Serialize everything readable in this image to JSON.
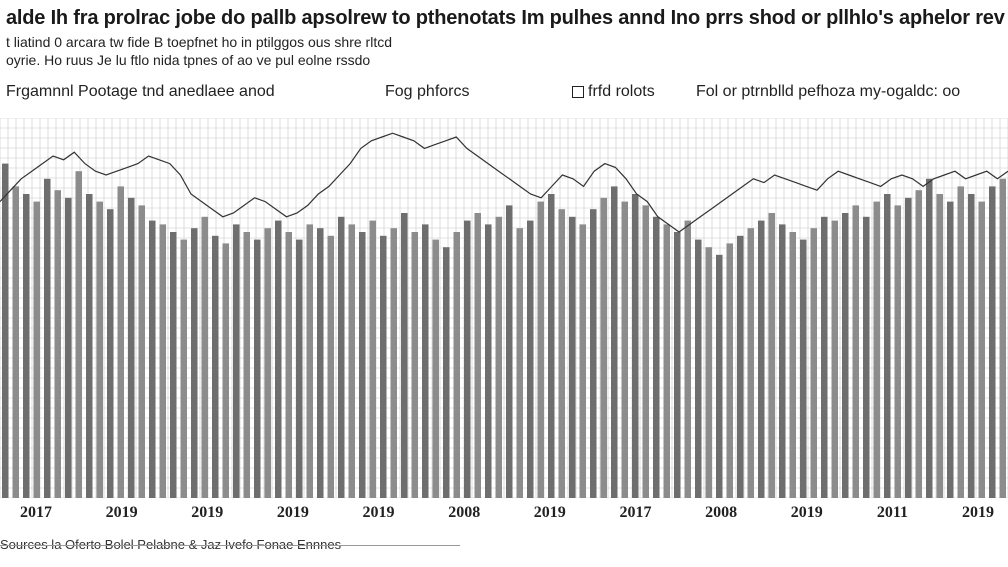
{
  "header": {
    "title": "alde Ih fra prolrac jobe do pallb apsolrew to pthenotats Im pulhes annd Ino prrs shod or pllhlo's aphelor rev",
    "subtitle_1": "t liatind 0 arcara tw fide B toepfnet ho in ptilggos ous shre rltcd",
    "subtitle_2": "oyrie. Ho ruus Je lu ftlo nida tpnes of ao ve pul eolne rssdo"
  },
  "legend": {
    "item_1": "Frgamnnl Pootage tnd anedlaee anod",
    "item_2": "Fog phforcs",
    "item_3": "frfd rolots",
    "item_4": "Fol  or ptrnblld pefhoza my-ogaldc: oo"
  },
  "footer": {
    "source": "Sources la Oferto Bolel Pelabne & Jaz Ivefo Fonae Ennnes"
  },
  "colors": {
    "background": "#ffffff",
    "bar": "#6e6e6e",
    "bar_alt": "#8c8c8c",
    "grid": "#c8c8c8",
    "envelope": "#333333",
    "text": "#1a1a1a"
  },
  "chart_data": {
    "type": "bar",
    "title": "alde Ih fra prolrac jobe do pallb apsolrew to pthenotats Im pulhes annd Ino prrs shod or pllhlo's aphelor rev",
    "xlabel": "",
    "ylabel": "",
    "ylim": [
      0,
      100
    ],
    "grid": true,
    "legend_position": "top",
    "x_tick_labels": [
      "2017",
      "2019",
      "2019",
      "2019",
      "2019",
      "2008",
      "2019",
      "2017",
      "2008",
      "2019",
      "2011",
      "2019"
    ],
    "series": [
      {
        "name": "Frgamnnl Pootage tnd anedlaee anod",
        "values": [
          88,
          82,
          80,
          78,
          84,
          81,
          79,
          86,
          80,
          78,
          76,
          82,
          79,
          77,
          73,
          72,
          70,
          68,
          71,
          74,
          69,
          67,
          72,
          70,
          68,
          71,
          73,
          70,
          68,
          72,
          71,
          69,
          74,
          72,
          70,
          73,
          69,
          71,
          75,
          70,
          72,
          68,
          66,
          70,
          73,
          75,
          72,
          74,
          77,
          71,
          73,
          78,
          80,
          76,
          74,
          72,
          76,
          79,
          82,
          78,
          80,
          77,
          74,
          72,
          70,
          73,
          68,
          66,
          64,
          67,
          69,
          71,
          73,
          75,
          72,
          70,
          68,
          71,
          74,
          73,
          75,
          77,
          74,
          78,
          80,
          77,
          79,
          81,
          84,
          80,
          78,
          82,
          80,
          78,
          82,
          84
        ]
      },
      {
        "name": "Fog phforcs",
        "values": [
          78,
          81,
          84,
          86,
          88,
          90,
          89,
          91,
          88,
          86,
          85,
          86,
          87,
          88,
          90,
          89,
          88,
          85,
          80,
          78,
          76,
          74,
          75,
          77,
          79,
          78,
          76,
          74,
          75,
          77,
          80,
          82,
          85,
          88,
          92,
          94,
          95,
          96,
          95,
          94,
          92,
          93,
          94,
          95,
          92,
          90,
          88,
          86,
          84,
          82,
          80,
          79,
          82,
          85,
          84,
          82,
          86,
          88,
          87,
          84,
          80,
          78,
          74,
          72,
          70,
          72,
          74,
          76,
          78,
          80,
          82,
          84,
          83,
          85,
          84,
          83,
          82,
          81,
          84,
          86,
          85,
          84,
          83,
          82,
          84,
          85,
          84,
          82,
          84,
          85,
          86,
          84,
          85,
          86,
          84,
          86
        ]
      }
    ]
  }
}
